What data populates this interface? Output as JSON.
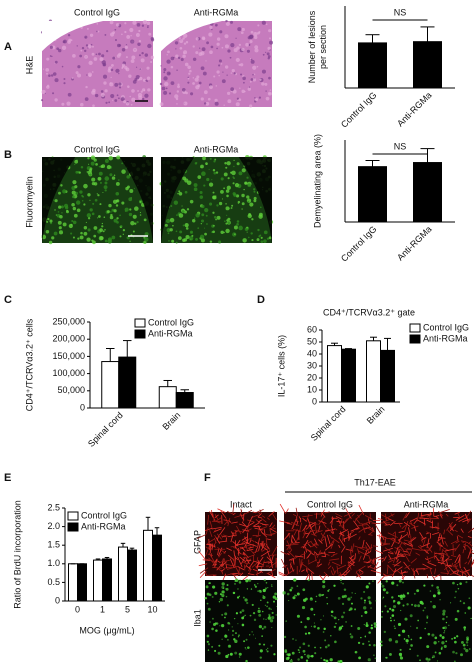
{
  "chart_data": [
    {
      "type": "bar",
      "ylabel": [
        "Number of lesions",
        "per section"
      ],
      "categories": [
        "Control IgG",
        "Anti-RGMa"
      ],
      "values": [
        11,
        11.3
      ],
      "errors": [
        2,
        3.6
      ],
      "color": "#000000",
      "ylim": [
        0,
        20
      ],
      "annotation": "NS",
      "xtick_rotation": 45
    },
    {
      "type": "bar",
      "ylabel": [
        "Demyelinating area (%)"
      ],
      "categories": [
        "Control IgG",
        "Anti-RGMa"
      ],
      "values": [
        13.5,
        14.5
      ],
      "errors": [
        1.5,
        3.4
      ],
      "color": "#000000",
      "ylim": [
        0,
        20
      ],
      "annotation": "NS",
      "xtick_rotation": 45
    },
    {
      "type": "bar",
      "ylabel": [
        "CD4⁺/TCRVα3.2⁺ cells"
      ],
      "categories": [
        "Spinal cord",
        "Brain"
      ],
      "series": [
        {
          "name": "Control IgG",
          "color": "#ffffff",
          "values": [
            135000,
            62000
          ],
          "errors": [
            38000,
            18000
          ]
        },
        {
          "name": "Anti-RGMa",
          "color": "#000000",
          "values": [
            148000,
            45000
          ],
          "errors": [
            48000,
            8000
          ]
        }
      ],
      "ylim": [
        0,
        250000
      ],
      "yticks": [
        0,
        {
          "value": 50000,
          "label": "50,000"
        },
        {
          "value": 100000,
          "label": "100,000"
        },
        {
          "value": 150000,
          "label": "150,000"
        },
        {
          "value": 200000,
          "label": "200,000"
        },
        {
          "value": 250000,
          "label": "250,000"
        }
      ],
      "legend": "upper right",
      "xtick_rotation": 45
    },
    {
      "type": "bar",
      "title": "CD4⁺/TCRVα3.2⁺ gate",
      "ylabel": [
        "IL-17⁺ cells (%)"
      ],
      "categories": [
        "Spinal cord",
        "Brain"
      ],
      "series": [
        {
          "name": "Control IgG",
          "color": "#ffffff",
          "values": [
            47,
            51
          ],
          "errors": [
            2,
            3
          ]
        },
        {
          "name": "Anti-RGMa",
          "color": "#000000",
          "values": [
            44,
            43
          ],
          "errors": [
            0.5,
            10
          ]
        }
      ],
      "ylim": [
        0,
        60
      ],
      "yticks": [
        0,
        10,
        20,
        30,
        40,
        50,
        60
      ],
      "legend": "right",
      "xtick_rotation": 45
    },
    {
      "type": "bar",
      "ylabel": [
        "Ratio of BrdU incorporation"
      ],
      "xlabel": "MOG (μg/mL)",
      "categories": [
        "0",
        "1",
        "5",
        "10"
      ],
      "series": [
        {
          "name": "Control IgG",
          "color": "#ffffff",
          "values": [
            1.0,
            1.1,
            1.45,
            1.9
          ],
          "errors": [
            0,
            0.03,
            0.1,
            0.35
          ]
        },
        {
          "name": "Anti-RGMa",
          "color": "#000000",
          "values": [
            1.0,
            1.13,
            1.37,
            1.77
          ],
          "errors": [
            0,
            0.04,
            0.05,
            0.2
          ]
        }
      ],
      "ylim": [
        0,
        2.5
      ],
      "yticks": [
        0,
        0.5,
        {
          "value": 1.0,
          "label": "1.0"
        },
        1.5,
        {
          "value": 2.0,
          "label": "2.0"
        },
        2.5
      ],
      "legend": "upper left",
      "xtick_rotation": 0
    }
  ],
  "figure": {
    "panel_letters": [
      "A",
      "B",
      "C",
      "D",
      "E",
      "F"
    ],
    "A": {
      "row_label": "H&E",
      "columns": [
        "Control IgG",
        "Anti-RGMa"
      ]
    },
    "B": {
      "row_label": "Fluoromyelin",
      "columns": [
        "Control IgG",
        "Anti-RGMa"
      ]
    },
    "F": {
      "group": "Th17-EAE",
      "columns": [
        "Intact",
        "Control IgG",
        "Anti-RGMa"
      ],
      "rows": [
        "GFAP",
        "Iba1"
      ]
    }
  }
}
